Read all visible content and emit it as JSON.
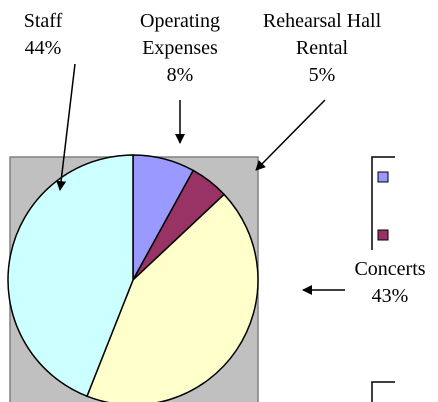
{
  "chart_data": {
    "type": "pie",
    "categories": [
      "Operating Expenses",
      "Rehearsal Hall Rental",
      "Concerts",
      "Staff"
    ],
    "values": [
      8,
      5,
      43,
      44
    ],
    "value_labels": [
      "8%",
      "5%",
      "43%",
      "44%"
    ],
    "colors": [
      "#9999ff",
      "#993366",
      "#ffffcc",
      "#ccffff"
    ]
  }
}
